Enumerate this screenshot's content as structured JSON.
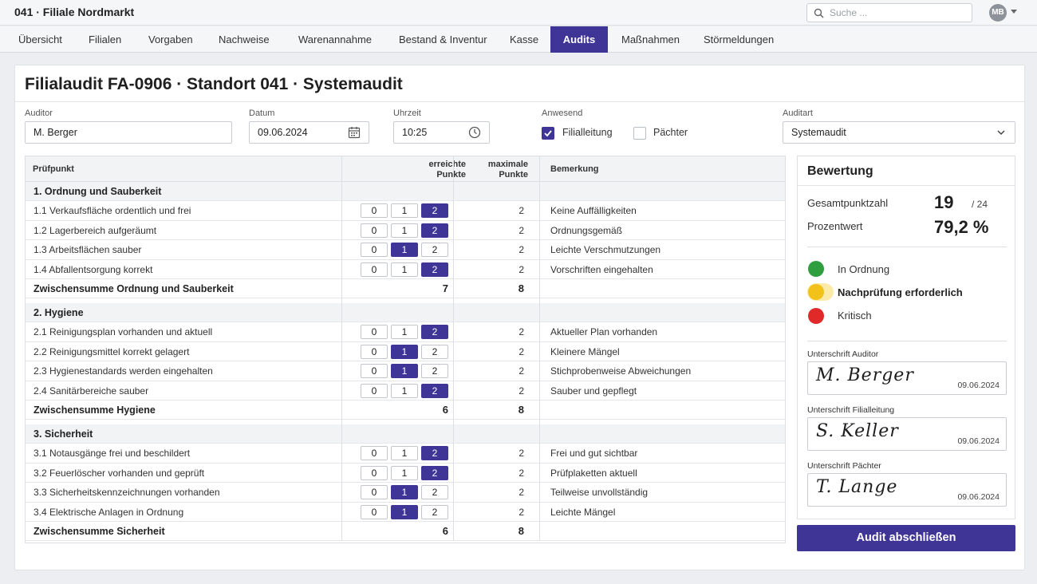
{
  "app": {
    "title": "041 · Filiale Nordmarkt",
    "search_placeholder": "Suche ...",
    "user_initials": "MB"
  },
  "nav": {
    "tabs": [
      "Übersicht",
      "Filialen",
      "Vorgaben",
      "Nachweise",
      "Warenannahme",
      "Bestand & Inventur",
      "Kasse",
      "Audits",
      "Maßnahmen",
      "Störmeldungen"
    ],
    "active": "Audits"
  },
  "page": {
    "title": "Filialaudit FA-0906 · Standort 041 · Systemaudit"
  },
  "form": {
    "auditor_label": "Auditor",
    "auditor_value": "M. Berger",
    "date_label": "Datum",
    "date_value": "09.06.2024",
    "time_label": "Uhrzeit",
    "time_value": "10:25",
    "present_label": "Anwesend",
    "present_options": [
      {
        "label": "Filialleitung",
        "checked": true
      },
      {
        "label": "Pächter",
        "checked": false
      }
    ],
    "type_label": "Auditart",
    "type_value": "Systemaudit"
  },
  "table": {
    "headers": {
      "item": "Prüfpunkt",
      "achieved_1": "erreichte",
      "achieved_2": "Punkte",
      "max_1": "maximale",
      "max_2": "Punkte",
      "remark": "Bemerkung"
    },
    "point_options": [
      "0",
      "1",
      "2"
    ],
    "sections": [
      {
        "title": "1.  Ordnung und Sauberkeit",
        "items": [
          {
            "label": "1.1  Verkaufsfläche ordentlich und frei",
            "score": 2,
            "max": "2",
            "remark": "Keine Auffälligkeiten"
          },
          {
            "label": "1.2  Lagerbereich aufgeräumt",
            "score": 2,
            "max": "2",
            "remark": "Ordnungsgemäß"
          },
          {
            "label": "1.3  Arbeitsflächen sauber",
            "score": 1,
            "max": "2",
            "remark": "Leichte Verschmutzungen"
          },
          {
            "label": "1.4  Abfallentsorgung korrekt",
            "score": 2,
            "max": "2",
            "remark": "Vorschriften eingehalten"
          }
        ],
        "subtotal_label": "Zwischensumme Ordnung und Sauberkeit",
        "subtotal_achieved": "7",
        "subtotal_max": "8"
      },
      {
        "title": "2.  Hygiene",
        "items": [
          {
            "label": "2.1  Reinigungsplan vorhanden und aktuell",
            "score": 2,
            "max": "2",
            "remark": "Aktueller Plan vorhanden"
          },
          {
            "label": "2.2  Reinigungsmittel korrekt gelagert",
            "score": 1,
            "max": "2",
            "remark": "Kleinere Mängel"
          },
          {
            "label": "2.3  Hygienestandards werden eingehalten",
            "score": 1,
            "max": "2",
            "remark": "Stichprobenweise Abweichungen"
          },
          {
            "label": "2.4  Sanitärbereiche sauber",
            "score": 2,
            "max": "2",
            "remark": "Sauber und gepflegt"
          }
        ],
        "subtotal_label": "Zwischensumme Hygiene",
        "subtotal_achieved": "6",
        "subtotal_max": "8"
      },
      {
        "title": "3.  Sicherheit",
        "items": [
          {
            "label": "3.1  Notausgänge frei und beschildert",
            "score": 2,
            "max": "2",
            "remark": "Frei und gut sichtbar"
          },
          {
            "label": "3.2  Feuerlöscher vorhanden und geprüft",
            "score": 2,
            "max": "2",
            "remark": "Prüfplaketten aktuell"
          },
          {
            "label": "3.3  Sicherheitskennzeichnungen vorhanden",
            "score": 1,
            "max": "2",
            "remark": "Teilweise unvollständig"
          },
          {
            "label": "3.4  Elektrische Anlagen in Ordnung",
            "score": 1,
            "max": "2",
            "remark": "Leichte Mängel"
          }
        ],
        "subtotal_label": "Zwischensumme Sicherheit",
        "subtotal_achieved": "6",
        "subtotal_max": "8"
      }
    ]
  },
  "rating": {
    "title": "Bewertung",
    "total_label": "Gesamtpunktzahl",
    "total_value": "19",
    "total_max": "/ 24",
    "percent_label": "Prozentwert",
    "percent_value": "79,2 %",
    "legend": [
      {
        "label": "In Ordnung",
        "color": "#2e9e3e",
        "active": false
      },
      {
        "label": "Nachprüfung erforderlich",
        "color": "#f2c21b",
        "active": true
      },
      {
        "label": "Kritisch",
        "color": "#e02a2a",
        "active": false
      }
    ],
    "signatures": [
      {
        "label": "Unterschrift Auditor",
        "name": "M. Berger",
        "date": "09.06.2024"
      },
      {
        "label": "Unterschrift Filialleitung",
        "name": "S. Keller",
        "date": "09.06.2024"
      },
      {
        "label": "Unterschrift Pächter",
        "name": "T. Lange",
        "date": "09.06.2024"
      }
    ]
  },
  "actions": {
    "finish_label": "Audit abschließen"
  },
  "colors": {
    "accent": "#3f3597",
    "ok": "#2e9e3e",
    "warn": "#f2c21b",
    "critical": "#e02a2a"
  }
}
